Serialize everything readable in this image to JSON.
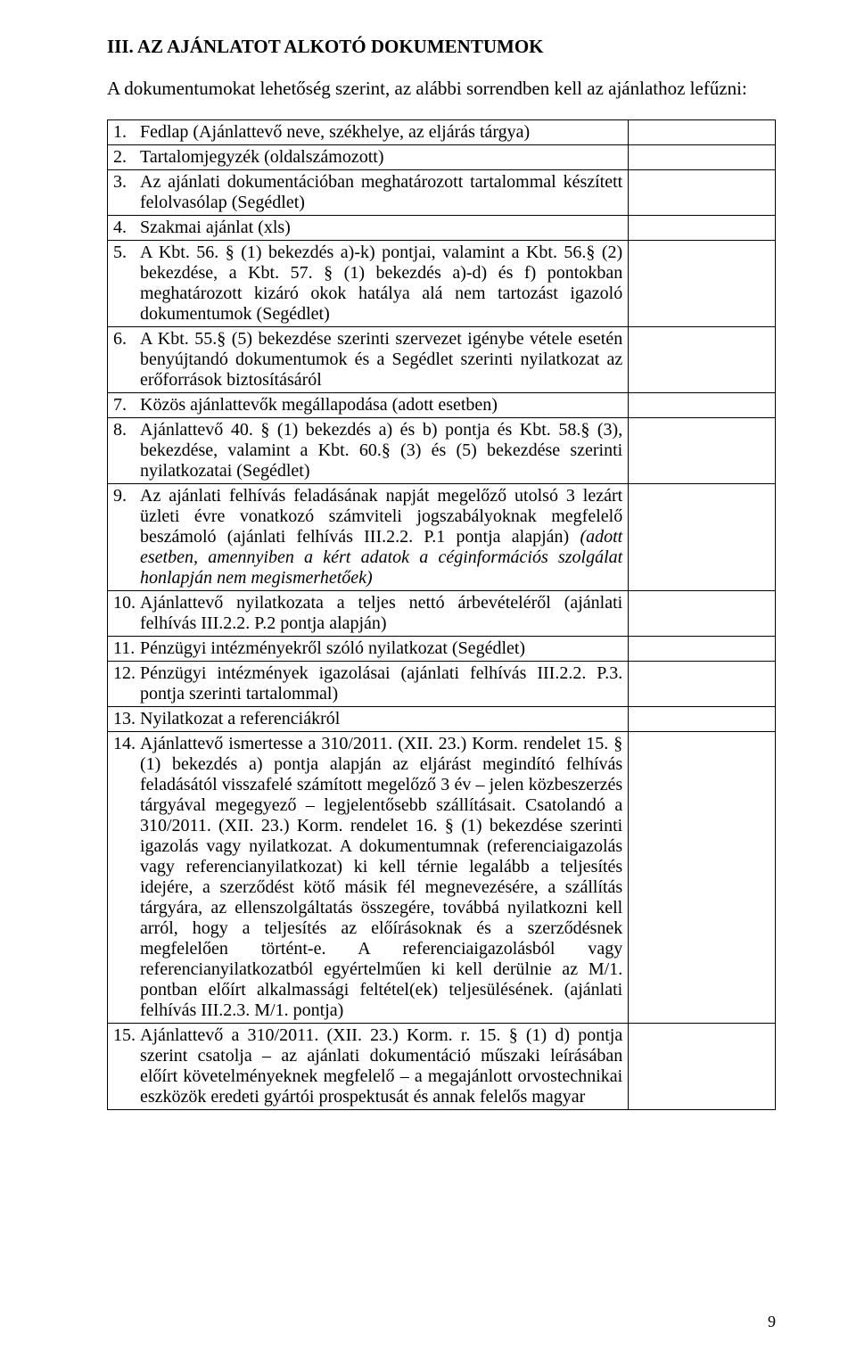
{
  "section_title": "III. AZ AJÁNLATOT ALKOTÓ DOKUMENTUMOK",
  "intro": "A dokumentumokat lehetőség szerint, az alábbi sorrendben kell az ajánlathoz lefűzni:",
  "page_number": "9",
  "items": [
    {
      "num": "1.",
      "text": "Fedlap (Ajánlattevő neve, székhelye, az eljárás tárgya)"
    },
    {
      "num": "2.",
      "text": "Tartalomjegyzék (oldalszámozott)"
    },
    {
      "num": "3.",
      "text": "Az ajánlati dokumentációban meghatározott tartalommal készített felolvasólap (Segédlet)"
    },
    {
      "num": "4.",
      "text": "Szakmai ajánlat (xls)"
    },
    {
      "num": "5.",
      "text": "A Kbt. 56. § (1) bekezdés a)-k) pontjai, valamint a Kbt. 56.§ (2) bekezdése, a Kbt. 57. § (1) bekezdés a)-d) és f) pontokban meghatározott kizáró okok hatálya alá nem tartozást igazoló dokumentumok (Segédlet)"
    },
    {
      "num": "6.",
      "text": "A Kbt. 55.§ (5) bekezdése szerinti szervezet igénybe vétele esetén benyújtandó dokumentumok és a Segédlet szerinti nyilatkozat az erőforrások biztosításáról"
    },
    {
      "num": "7.",
      "text": "Közös ajánlattevők megállapodása (adott esetben)"
    },
    {
      "num": "8.",
      "text": "Ajánlattevő 40. § (1) bekezdés a) és b) pontja és Kbt. 58.§ (3), bekezdése, valamint a Kbt. 60.§ (3) és (5) bekezdése szerinti nyilatkozatai (Segédlet)"
    },
    {
      "num": "9.",
      "text_plain": "Az ajánlati felhívás feladásának napját megelőző utolsó 3 lezárt üzleti évre vonatkozó számviteli jogszabályoknak megfelelő beszámoló (ajánlati felhívás III.2.2. P.1 pontja alapján) ",
      "text_italic": "(adott esetben, amennyiben a kért adatok a céginformációs szolgálat honlapján nem megismerhetőek)"
    },
    {
      "num": "10.",
      "text": "Ajánlattevő nyilatkozata a teljes nettó árbevételéről (ajánlati felhívás III.2.2. P.2 pontja alapján)"
    },
    {
      "num": "11.",
      "text": "Pénzügyi intézményekről szóló nyilatkozat (Segédlet)"
    },
    {
      "num": "12.",
      "text": "Pénzügyi intézmények igazolásai (ajánlati felhívás III.2.2. P.3. pontja szerinti tartalommal)"
    },
    {
      "num": "13.",
      "text": "Nyilatkozat a referenciákról"
    },
    {
      "num": "14.",
      "text": "Ajánlattevő ismertesse a 310/2011. (XII. 23.) Korm. rendelet 15. § (1) bekezdés a) pontja alapján az eljárást megindító felhívás feladásától visszafelé számított megelőző 3 év – jelen közbeszerzés tárgyával megegyező – legjelentősebb szállításait. Csatolandó a 310/2011. (XII. 23.) Korm. rendelet 16. § (1) bekezdése szerinti igazolás vagy nyilatkozat. A dokumentumnak (referenciaigazolás vagy referencianyilatkozat) ki kell térnie legalább a teljesítés idejére, a szerződést kötő másik fél megnevezésére, a szállítás tárgyára, az ellenszolgáltatás összegére, továbbá nyilatkozni kell arról, hogy a teljesítés az előírásoknak és a szerződésnek megfelelően történt-e. A referenciaigazolásból vagy referencianyilatkozatból egyértelműen ki kell derülnie az M/1. pontban előírt alkalmassági feltétel(ek) teljesülésének. (ajánlati felhívás III.2.3. M/1. pontja)"
    },
    {
      "num": "15.",
      "text": "Ajánlattevő a 310/2011. (XII. 23.) Korm. r. 15. § (1) d) pontja szerint csatolja – az ajánlati dokumentáció műszaki leírásában előírt követelményeknek megfelelő – a megajánlott orvostechnikai eszközök eredeti gyártói prospektusát és annak felelős magyar"
    }
  ]
}
